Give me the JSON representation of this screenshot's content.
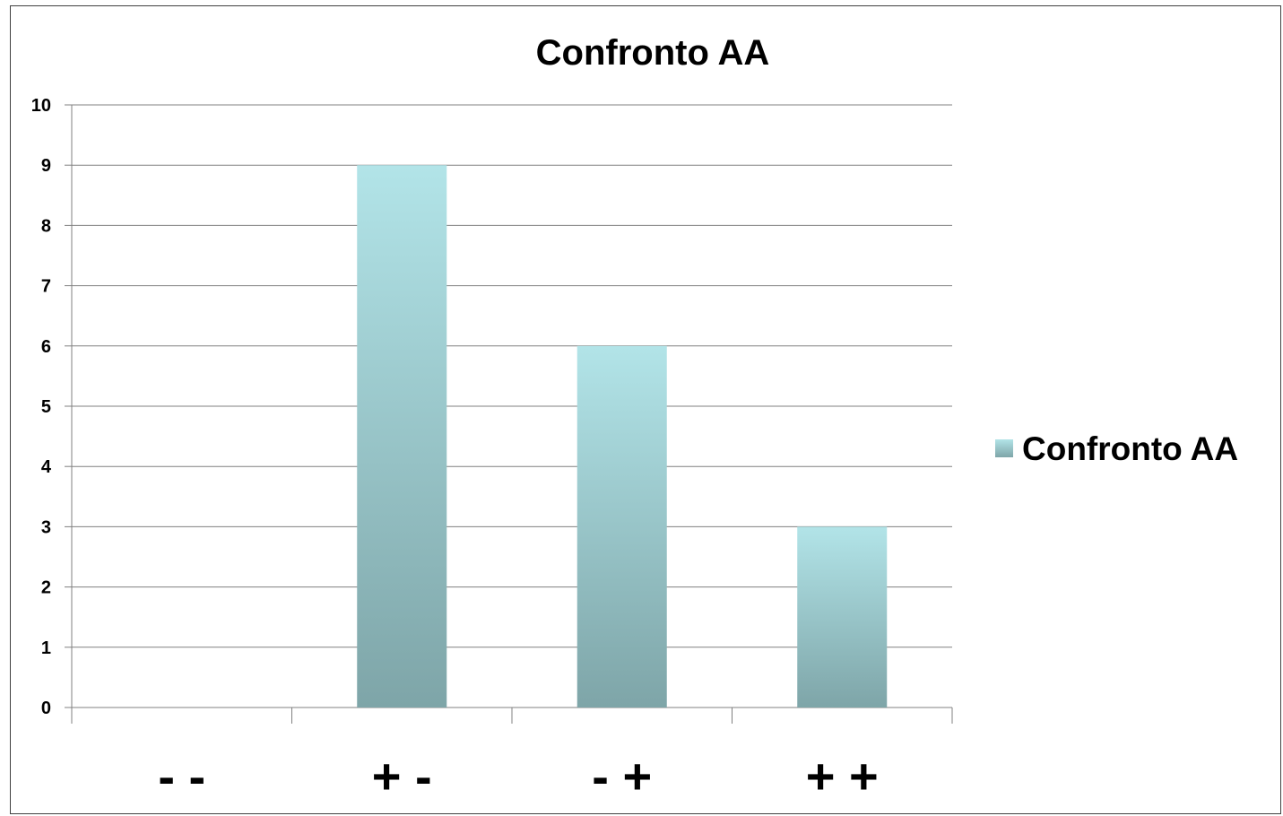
{
  "chart_data": {
    "type": "bar",
    "title": "Confronto AA",
    "xlabel": "",
    "ylabel": "",
    "categories": [
      "- -",
      "+ -",
      "- +",
      "+ +"
    ],
    "series": [
      {
        "name": "Confronto AA",
        "values": [
          0,
          9,
          6,
          3
        ]
      }
    ],
    "ylim": [
      0,
      10
    ],
    "yticks": [
      "0",
      "1",
      "2",
      "3",
      "4",
      "5",
      "6",
      "7",
      "8",
      "9",
      "10"
    ],
    "grid": true,
    "legend": "right",
    "colors": {
      "bar_top": "#B2E4E8",
      "bar_bottom": "#7EA5A8",
      "gridline": "#808080",
      "frame": "#404040"
    }
  }
}
